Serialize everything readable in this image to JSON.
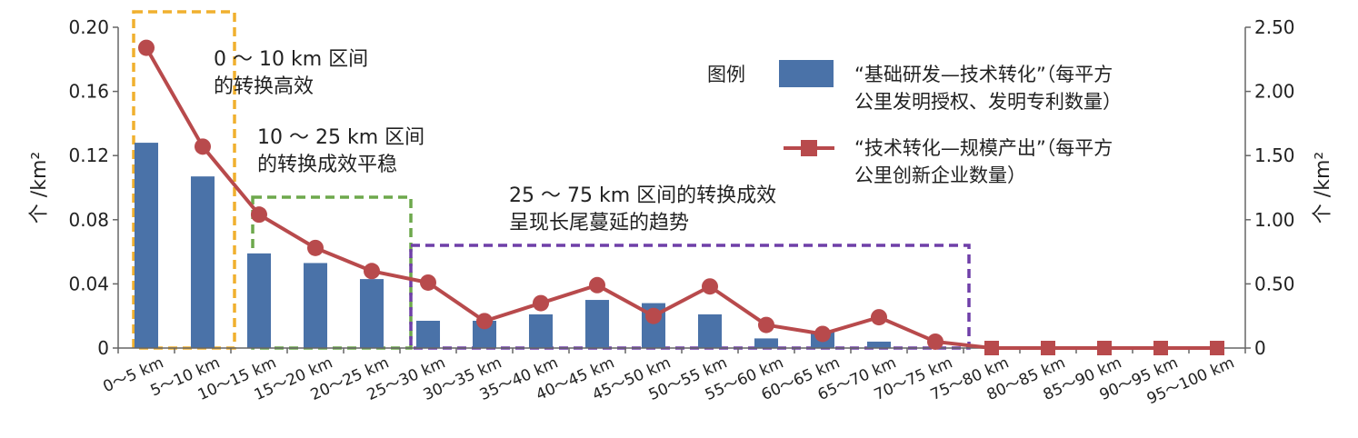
{
  "chart_data": {
    "type": "bar+line",
    "categories": [
      "0～5 km",
      "5～10 km",
      "10～15 km",
      "15～20 km",
      "20～25 km",
      "25～30 km",
      "30～35 km",
      "35～40 km",
      "40～45 km",
      "45～50 km",
      "50～55 km",
      "55～60 km",
      "60～65 km",
      "65～70 km",
      "70～75 km",
      "75～80 km",
      "80～85 km",
      "85～90 km",
      "90～95 km",
      "95～100 km"
    ],
    "series": [
      {
        "name": "“基础研发—技术转化”（每平方公里发明授权、发明专利数量）",
        "kind": "bar",
        "axis": "left",
        "color": "#4a72a8",
        "values": [
          0.128,
          0.107,
          0.059,
          0.053,
          0.043,
          0.017,
          0.017,
          0.021,
          0.03,
          0.028,
          0.021,
          0.006,
          0.01,
          0.004,
          0,
          0,
          0,
          0,
          0,
          0
        ]
      },
      {
        "name": "“技术转化—规模产出”（每平方公里创新企业数量）",
        "kind": "line",
        "axis": "right",
        "color": "#b84a4c",
        "values": [
          2.34,
          1.57,
          1.04,
          0.78,
          0.6,
          0.51,
          0.21,
          0.35,
          0.49,
          0.25,
          0.48,
          0.18,
          0.11,
          0.24,
          0.05,
          0,
          0,
          0,
          0,
          0
        ]
      }
    ],
    "y_left": {
      "label": "个 /km²",
      "ylim": [
        0,
        0.2
      ],
      "ticks": [
        "0",
        "0.04",
        "0.08",
        "0.12",
        "0.16",
        "0.20"
      ]
    },
    "y_right": {
      "label": "个 /km²",
      "ylim": [
        0,
        2.5
      ],
      "ticks": [
        "0",
        "0.50",
        "1.00",
        "1.50",
        "2.00",
        "2.50"
      ]
    },
    "legend_title": "图例",
    "legend_bar_lines": [
      "“基础研发—技术转化”（每平方",
      "公里发明授权、发明专利数量）"
    ],
    "legend_line_lines": [
      "“技术转化—规模产出”（每平方",
      "公里创新企业数量）"
    ],
    "legend_position": "top-right",
    "annotations": [
      {
        "lines": [
          "0 ～ 10 km 区间",
          "的转换高效"
        ],
        "box_color": "#f0b02f",
        "range": [
          0,
          1
        ]
      },
      {
        "lines": [
          "10 ～ 25 km 区间",
          "的转换成效平稳"
        ],
        "box_color": "#6da84c",
        "range": [
          2,
          4
        ]
      },
      {
        "lines": [
          "25 ～ 75 km 区间的转换成效",
          "呈现长尾蔓延的趋势"
        ],
        "box_color": "#6f3fa8",
        "range": [
          5,
          14
        ]
      }
    ],
    "grid": false
  }
}
